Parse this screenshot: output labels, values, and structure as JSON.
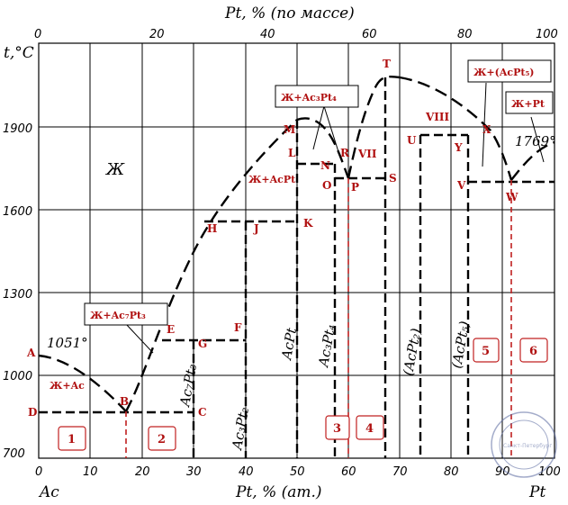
{
  "title": "Pt, % (по массе)",
  "x_axis_label": "Pt, % (ат.)",
  "y_axis_label": "t,°C",
  "left_component": "Ac",
  "right_component": "Pt",
  "colors": {
    "lines": "#000000",
    "labels": "#b01010",
    "dashed_markers": "#c02020"
  },
  "bottom_ticks": [
    "0",
    "10",
    "20",
    "30",
    "40",
    "50",
    "60",
    "70",
    "80",
    "90",
    "100"
  ],
  "top_ticks": [
    "0",
    "20",
    "40",
    "60",
    "80",
    "100"
  ],
  "y_ticks": [
    "700",
    "1000",
    "1300",
    "1600",
    "1900"
  ],
  "temperatures": {
    "ac_melting": "1051°",
    "pt_melting": "1769°"
  },
  "region_symbol": "Ж",
  "boxes": {
    "liquid_ac7pt3": "Ж+Ac₇Pt₃",
    "liquid_ac3pt4": "Ж+Ac₃Pt₄",
    "liquid_acpt5": "Ж+(AcPt₅)",
    "liquid_pt": "Ж+Pt"
  },
  "field_labels": {
    "liquid_ac": "Ж+Ac",
    "liquid_acpt": "Ж+AcPt"
  },
  "phases": [
    "Ac₇Pt₃",
    "Ac₃Pt₂",
    "AcPt",
    "Ac₃Pt₄",
    "(AcPt₂)",
    "(AcPt₅)"
  ],
  "points": [
    "A",
    "B",
    "C",
    "D",
    "E",
    "F",
    "G",
    "H",
    "J",
    "K",
    "L",
    "M",
    "N",
    "O",
    "P",
    "R",
    "S",
    "T",
    "U",
    "V",
    "W",
    "X",
    "Y",
    "VII",
    "VIII"
  ],
  "numbered_regions": [
    "1",
    "2",
    "3",
    "4",
    "5",
    "6"
  ],
  "stamp_text": "Санкт-Петербург"
}
